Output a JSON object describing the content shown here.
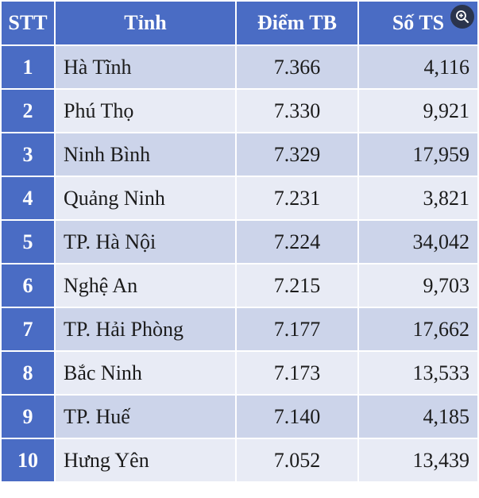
{
  "chart_data": {
    "type": "table",
    "columns": [
      "STT",
      "Tỉnh",
      "Điểm TB",
      "Số TS"
    ],
    "rows": [
      [
        "1",
        "Hà Tĩnh",
        "7.366",
        "4,116"
      ],
      [
        "2",
        "Phú Thọ",
        "7.330",
        "9,921"
      ],
      [
        "3",
        "Ninh Bình",
        "7.329",
        "17,959"
      ],
      [
        "4",
        "Quảng Ninh",
        "7.231",
        "3,821"
      ],
      [
        "5",
        "TP. Hà Nội",
        "7.224",
        "34,042"
      ],
      [
        "6",
        "Nghệ An",
        "7.215",
        "9,703"
      ],
      [
        "7",
        "TP. Hải Phòng",
        "7.177",
        "17,662"
      ],
      [
        "8",
        "Bắc Ninh",
        "7.173",
        "13,533"
      ],
      [
        "9",
        "TP. Huế",
        "7.140",
        "4,185"
      ],
      [
        "10",
        "Hưng Yên",
        "7.052",
        "13,439"
      ]
    ]
  },
  "colors": {
    "header": "#4a6cc4",
    "row_odd": "#ccd4ea",
    "row_even": "#e8ebf5"
  },
  "overlay": {
    "icon": "zoom-in-icon"
  }
}
